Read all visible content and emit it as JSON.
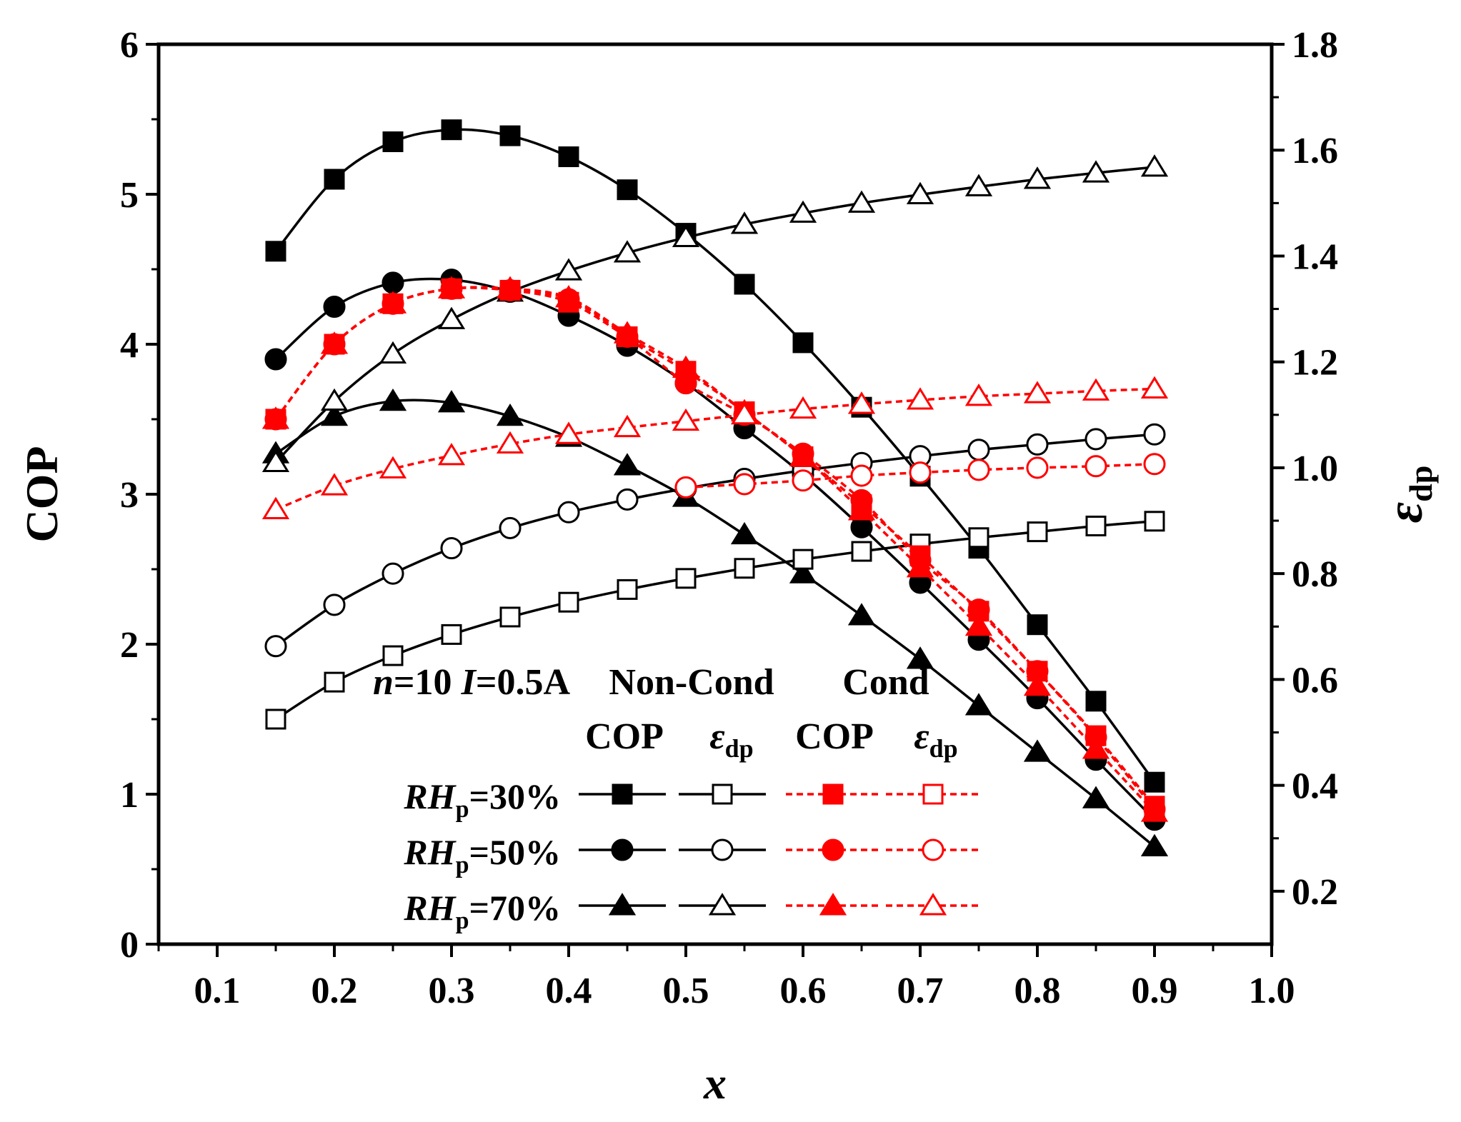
{
  "chart_data": {
    "type": "line",
    "xlabel": "x",
    "ylabel_left": "COP",
    "ylabel_right": {
      "main": "ε",
      "sub": "dp"
    },
    "xlim": [
      0.05,
      1.0
    ],
    "ylim_left": [
      0,
      6
    ],
    "ylim_right": [
      0.1,
      1.8
    ],
    "xticks": [
      "0.1",
      "0.2",
      "0.3",
      "0.4",
      "0.5",
      "0.6",
      "0.7",
      "0.8",
      "0.9",
      "1.0"
    ],
    "yticks_left": [
      "0",
      "1",
      "2",
      "3",
      "4",
      "5",
      "6"
    ],
    "yticks_right": [
      "0.2",
      "0.4",
      "0.6",
      "0.8",
      "1.0",
      "1.2",
      "1.4",
      "1.6",
      "1.8"
    ],
    "x": [
      0.15,
      0.2,
      0.25,
      0.3,
      0.35,
      0.4,
      0.45,
      0.5,
      0.55,
      0.6,
      0.65,
      0.7,
      0.75,
      0.8,
      0.85,
      0.9
    ],
    "series": [
      {
        "group": "Non-Cond",
        "metric": "COP",
        "rh": "30%",
        "axis": "left",
        "marker": "square",
        "filled": true,
        "color": "#000000",
        "dashed": false,
        "values": [
          4.62,
          5.1,
          5.35,
          5.43,
          5.39,
          5.25,
          5.03,
          4.74,
          4.4,
          4.01,
          3.58,
          3.12,
          2.64,
          2.13,
          1.62,
          1.08
        ]
      },
      {
        "group": "Non-Cond",
        "metric": "COP",
        "rh": "50%",
        "axis": "left",
        "marker": "circle",
        "filled": true,
        "color": "#000000",
        "dashed": false,
        "values": [
          3.9,
          4.25,
          4.41,
          4.43,
          4.35,
          4.19,
          3.99,
          3.74,
          3.44,
          3.13,
          2.78,
          2.41,
          2.03,
          1.64,
          1.23,
          0.83
        ]
      },
      {
        "group": "Non-Cond",
        "metric": "COP",
        "rh": "70%",
        "axis": "left",
        "marker": "triangle",
        "filled": true,
        "color": "#000000",
        "dashed": false,
        "values": [
          3.27,
          3.52,
          3.62,
          3.61,
          3.52,
          3.38,
          3.19,
          2.98,
          2.73,
          2.47,
          2.19,
          1.9,
          1.59,
          1.28,
          0.97,
          0.65
        ]
      },
      {
        "group": "Non-Cond",
        "metric": "ε_dp",
        "rh": "30%",
        "axis": "right",
        "marker": "square",
        "filled": false,
        "color": "#000000",
        "dashed": false,
        "values": [
          0.525,
          0.595,
          0.645,
          0.685,
          0.718,
          0.746,
          0.77,
          0.791,
          0.81,
          0.827,
          0.842,
          0.856,
          0.868,
          0.879,
          0.89,
          0.899
        ]
      },
      {
        "group": "Non-Cond",
        "metric": "ε_dp",
        "rh": "50%",
        "axis": "right",
        "marker": "circle",
        "filled": false,
        "color": "#000000",
        "dashed": false,
        "values": [
          0.663,
          0.741,
          0.8,
          0.848,
          0.886,
          0.916,
          0.94,
          0.961,
          0.979,
          0.995,
          1.009,
          1.022,
          1.034,
          1.044,
          1.054,
          1.063
        ]
      },
      {
        "group": "Non-Cond",
        "metric": "ε_dp",
        "rh": "70%",
        "axis": "right",
        "marker": "triangle",
        "filled": false,
        "color": "#000000",
        "dashed": false,
        "values": [
          1.01,
          1.126,
          1.215,
          1.28,
          1.332,
          1.372,
          1.406,
          1.435,
          1.46,
          1.481,
          1.5,
          1.516,
          1.531,
          1.545,
          1.557,
          1.568
        ]
      },
      {
        "group": "Cond",
        "metric": "COP",
        "rh": "30%",
        "axis": "left",
        "marker": "square",
        "filled": true,
        "color": "#ff0000",
        "dashed": true,
        "values": [
          3.5,
          4.0,
          4.27,
          4.37,
          4.36,
          4.28,
          4.05,
          3.82,
          3.55,
          3.25,
          2.93,
          2.59,
          2.22,
          1.82,
          1.39,
          0.92
        ]
      },
      {
        "group": "Cond",
        "metric": "COP",
        "rh": "50%",
        "axis": "left",
        "marker": "circle",
        "filled": true,
        "color": "#ff0000",
        "dashed": true,
        "values": [
          3.5,
          4.0,
          4.27,
          4.37,
          4.36,
          4.3,
          4.05,
          3.74,
          3.53,
          3.27,
          2.96,
          2.56,
          2.23,
          1.82,
          1.38,
          0.9
        ]
      },
      {
        "group": "Cond",
        "metric": "COP",
        "rh": "70%",
        "axis": "left",
        "marker": "triangle",
        "filled": true,
        "color": "#ff0000",
        "dashed": true,
        "values": [
          3.5,
          4.0,
          4.27,
          4.37,
          4.37,
          4.31,
          4.07,
          3.84,
          3.55,
          3.25,
          2.89,
          2.51,
          2.12,
          1.72,
          1.3,
          0.88
        ]
      },
      {
        "group": "Cond",
        "metric": "ε_dp",
        "rh": "50%",
        "axis": "right",
        "marker": "circle",
        "filled": false,
        "color": "#ff0000",
        "dashed": true,
        "values": [
          null,
          null,
          null,
          null,
          null,
          null,
          null,
          0.963,
          0.969,
          0.976,
          0.985,
          0.991,
          0.996,
          1.0,
          1.003,
          1.007
        ]
      },
      {
        "group": "Cond",
        "metric": "ε_dp",
        "rh": "70%",
        "axis": "right",
        "marker": "triangle",
        "filled": false,
        "color": "#ff0000",
        "dashed": true,
        "values": [
          0.921,
          0.966,
          0.998,
          1.023,
          1.045,
          1.063,
          1.076,
          1.088,
          1.1,
          1.111,
          1.12,
          1.128,
          1.135,
          1.14,
          1.145,
          1.149
        ]
      }
    ],
    "legend": {
      "header": {
        "n_label": "n",
        "n_value": "=10 ",
        "i_label": "I",
        "i_value": "=0.5A",
        "noncond": "Non-Cond",
        "cond": "Cond"
      },
      "subheader": {
        "cop": "COP",
        "eps_main": "ε",
        "eps_sub": "dp"
      },
      "rows": [
        {
          "rh_main": "RH",
          "rh_sub": "p",
          "rh_value": "=30%",
          "marker": "square"
        },
        {
          "rh_main": "RH",
          "rh_sub": "p",
          "rh_value": "=50%",
          "marker": "circle"
        },
        {
          "rh_main": "RH",
          "rh_sub": "p",
          "rh_value": "=70%",
          "marker": "triangle"
        }
      ],
      "placement": "bottom-center"
    },
    "grid": false,
    "colors": {
      "noncond": "#000000",
      "cond": "#ff0000"
    }
  }
}
